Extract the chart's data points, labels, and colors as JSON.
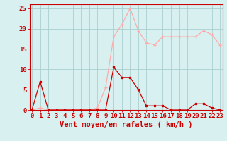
{
  "x": [
    0,
    1,
    2,
    3,
    4,
    5,
    6,
    7,
    8,
    9,
    10,
    11,
    12,
    13,
    14,
    15,
    16,
    17,
    18,
    19,
    20,
    21,
    22,
    23
  ],
  "wind_avg": [
    0,
    7,
    0,
    0,
    0,
    0,
    0,
    0,
    0,
    0,
    10.5,
    8,
    8,
    5,
    1,
    1,
    1,
    0,
    0,
    0,
    1.5,
    1.5,
    0.5,
    0
  ],
  "wind_gust": [
    0,
    0.5,
    0,
    0,
    0,
    0,
    0,
    0,
    0.5,
    5.5,
    18,
    21,
    25,
    19.5,
    16.5,
    16,
    18,
    18,
    18,
    18,
    18,
    19.5,
    18.5,
    16
  ],
  "avg_color": "#cc0000",
  "gust_color": "#ffaaaa",
  "bg_color": "#d8f0f0",
  "grid_color": "#aad0d0",
  "xlabel": "Vent moyen/en rafales ( km/h )",
  "ylim": [
    0,
    26
  ],
  "yticks": [
    0,
    5,
    10,
    15,
    20,
    25
  ],
  "tick_fontsize": 6.5,
  "axis_fontsize": 7.5
}
